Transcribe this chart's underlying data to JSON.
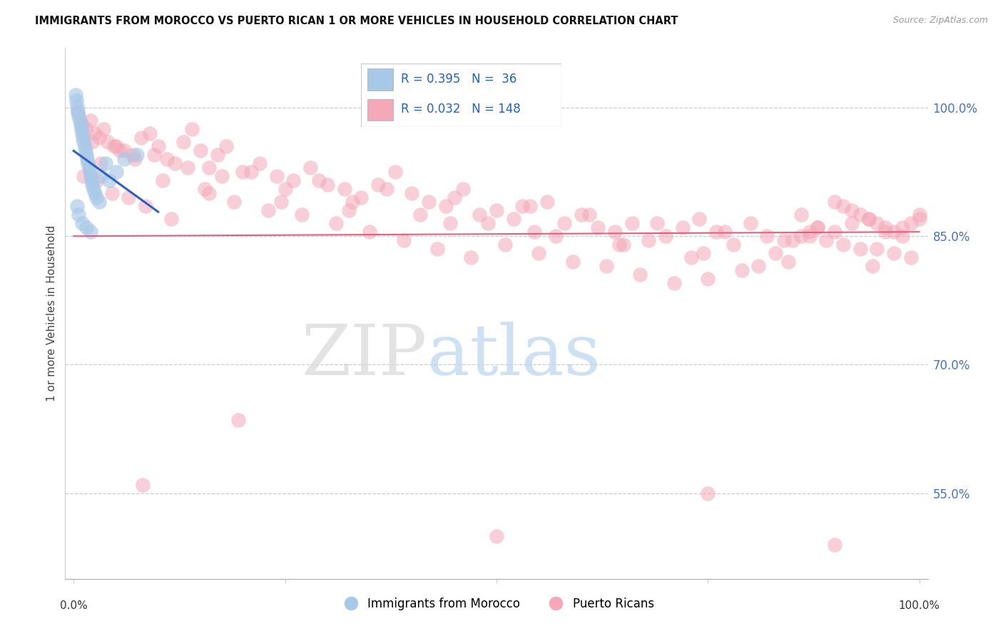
{
  "title": "IMMIGRANTS FROM MOROCCO VS PUERTO RICAN 1 OR MORE VEHICLES IN HOUSEHOLD CORRELATION CHART",
  "source": "Source: ZipAtlas.com",
  "ylabel": "1 or more Vehicles in Household",
  "right_yticks": [
    55.0,
    70.0,
    85.0,
    100.0
  ],
  "blue_R": 0.395,
  "blue_N": 36,
  "pink_R": 0.032,
  "pink_N": 148,
  "blue_color": "#a8c8e8",
  "pink_color": "#f4a8b8",
  "blue_line_color": "#3060c0",
  "pink_line_color": "#e06080",
  "legend_color": "#2060cc",
  "watermark_zip": "ZIP",
  "watermark_atlas": "atlas",
  "xmin": 0.0,
  "xmax": 100.0,
  "ymin": 45.0,
  "ymax": 107.0
}
